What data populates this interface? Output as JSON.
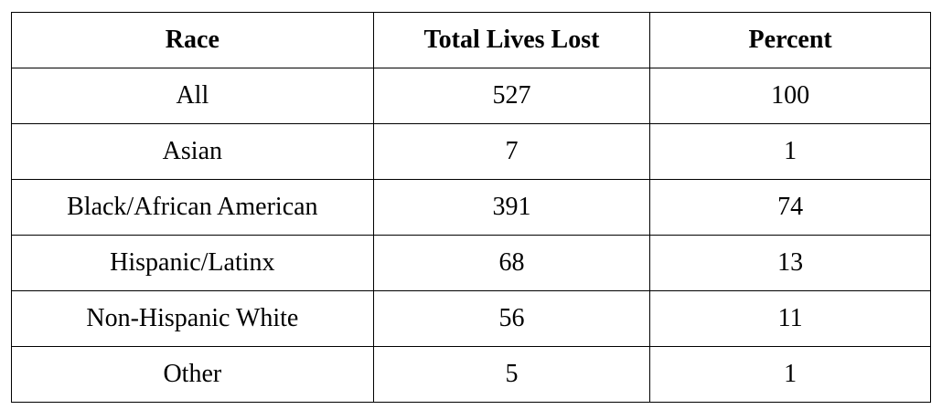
{
  "table": {
    "columns": [
      "Race",
      "Total Lives Lost",
      "Percent"
    ],
    "rows": [
      [
        "All",
        527,
        100
      ],
      [
        "Asian",
        7,
        1
      ],
      [
        "Black/African American",
        391,
        74
      ],
      [
        "Hispanic/Latinx",
        68,
        13
      ],
      [
        "Non-Hispanic White",
        56,
        11
      ],
      [
        "Other",
        5,
        1
      ]
    ]
  }
}
